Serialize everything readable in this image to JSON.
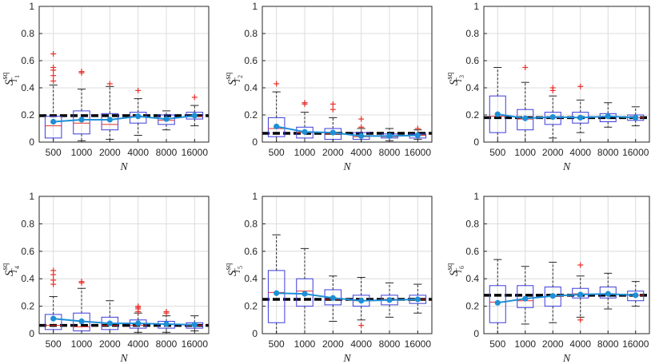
{
  "chart_data": [
    {
      "type": "box",
      "xlabel": "N",
      "ylabel": {
        "base": "S",
        "sup": "sq",
        "sub": "T",
        "subsub": "1"
      },
      "ylim": [
        0,
        1
      ],
      "yticks": [
        "0",
        "0.2",
        "0.4",
        "0.6",
        "0.8",
        "1"
      ],
      "categories": [
        "500",
        "1000",
        "2000",
        "4000",
        "8000",
        "16000"
      ],
      "reference": 0.195,
      "boxes": [
        {
          "whislo": 0.0,
          "q1": 0.03,
          "med": 0.12,
          "q3": 0.19,
          "whishi": 0.42,
          "fliers": [
            0.45,
            0.49,
            0.53,
            0.55,
            0.65
          ]
        },
        {
          "whislo": 0.01,
          "q1": 0.06,
          "med": 0.14,
          "q3": 0.23,
          "whishi": 0.39,
          "fliers": [
            0.51,
            0.52
          ]
        },
        {
          "whislo": 0.02,
          "q1": 0.09,
          "med": 0.13,
          "q3": 0.21,
          "whishi": 0.41,
          "fliers": [
            0.43
          ]
        },
        {
          "whislo": 0.05,
          "q1": 0.14,
          "med": 0.19,
          "q3": 0.22,
          "whishi": 0.32,
          "fliers": [
            0.38
          ]
        },
        {
          "whislo": 0.09,
          "q1": 0.13,
          "med": 0.16,
          "q3": 0.2,
          "whishi": 0.23,
          "fliers": []
        },
        {
          "whislo": 0.12,
          "q1": 0.17,
          "med": 0.19,
          "q3": 0.22,
          "whishi": 0.27,
          "fliers": [
            0.33
          ]
        }
      ],
      "means": [
        0.15,
        0.165,
        0.165,
        0.19,
        0.17,
        0.195
      ]
    },
    {
      "type": "box",
      "xlabel": "N",
      "ylabel": {
        "base": "S",
        "sup": "sq",
        "sub": "T",
        "subsub": "2"
      },
      "ylim": [
        0,
        1
      ],
      "yticks": [
        "0",
        "0.2",
        "0.4",
        "0.6",
        "0.8",
        "1"
      ],
      "categories": [
        "500",
        "1000",
        "2000",
        "4000",
        "8000",
        "16000"
      ],
      "reference": 0.065,
      "boxes": [
        {
          "whislo": 0.0,
          "q1": 0.04,
          "med": 0.1,
          "q3": 0.18,
          "whishi": 0.37,
          "fliers": [
            0.43
          ]
        },
        {
          "whislo": 0.0,
          "q1": 0.03,
          "med": 0.07,
          "q3": 0.11,
          "whishi": 0.22,
          "fliers": [
            0.28,
            0.29
          ]
        },
        {
          "whislo": 0.0,
          "q1": 0.02,
          "med": 0.06,
          "q3": 0.1,
          "whishi": 0.18,
          "fliers": [
            0.24,
            0.28
          ]
        },
        {
          "whislo": 0.0,
          "q1": 0.02,
          "med": 0.04,
          "q3": 0.07,
          "whishi": 0.1,
          "fliers": [
            0.11,
            0.17
          ]
        },
        {
          "whislo": 0.01,
          "q1": 0.03,
          "med": 0.04,
          "q3": 0.06,
          "whishi": 0.1,
          "fliers": []
        },
        {
          "whislo": 0.02,
          "q1": 0.03,
          "med": 0.05,
          "q3": 0.06,
          "whishi": 0.09,
          "fliers": [
            0.1
          ]
        }
      ],
      "means": [
        0.115,
        0.075,
        0.07,
        0.045,
        0.045,
        0.05
      ]
    },
    {
      "type": "box",
      "xlabel": "N",
      "ylabel": {
        "base": "S",
        "sup": "sq",
        "sub": "T",
        "subsub": "3"
      },
      "ylim": [
        0,
        1
      ],
      "yticks": [
        "0",
        "0.2",
        "0.4",
        "0.6",
        "0.8",
        "1"
      ],
      "categories": [
        "500",
        "1000",
        "2000",
        "4000",
        "8000",
        "16000"
      ],
      "reference": 0.18,
      "boxes": [
        {
          "whislo": 0.0,
          "q1": 0.07,
          "med": 0.19,
          "q3": 0.34,
          "whishi": 0.55,
          "fliers": []
        },
        {
          "whislo": 0.0,
          "q1": 0.09,
          "med": 0.17,
          "q3": 0.24,
          "whishi": 0.44,
          "fliers": [
            0.55
          ]
        },
        {
          "whislo": 0.03,
          "q1": 0.13,
          "med": 0.18,
          "q3": 0.22,
          "whishi": 0.34,
          "fliers": [
            0.38,
            0.4
          ]
        },
        {
          "whislo": 0.07,
          "q1": 0.14,
          "med": 0.18,
          "q3": 0.22,
          "whishi": 0.31,
          "fliers": [
            0.41
          ]
        },
        {
          "whislo": 0.11,
          "q1": 0.15,
          "med": 0.19,
          "q3": 0.21,
          "whishi": 0.29,
          "fliers": []
        },
        {
          "whislo": 0.12,
          "q1": 0.16,
          "med": 0.18,
          "q3": 0.2,
          "whishi": 0.26,
          "fliers": []
        }
      ],
      "means": [
        0.205,
        0.175,
        0.185,
        0.18,
        0.19,
        0.18
      ]
    },
    {
      "type": "box",
      "xlabel": "N",
      "ylabel": {
        "base": "S",
        "sup": "sq",
        "sub": "T",
        "subsub": "4"
      },
      "ylim": [
        0,
        1
      ],
      "yticks": [
        "0",
        "0.2",
        "0.4",
        "0.6",
        "0.8",
        "1"
      ],
      "categories": [
        "500",
        "1000",
        "2000",
        "4000",
        "8000",
        "16000"
      ],
      "reference": 0.06,
      "boxes": [
        {
          "whislo": 0.0,
          "q1": 0.03,
          "med": 0.06,
          "q3": 0.14,
          "whishi": 0.27,
          "fliers": [
            0.36,
            0.39,
            0.43,
            0.46
          ]
        },
        {
          "whislo": 0.0,
          "q1": 0.02,
          "med": 0.05,
          "q3": 0.15,
          "whishi": 0.33,
          "fliers": [
            0.37,
            0.38
          ]
        },
        {
          "whislo": 0.0,
          "q1": 0.03,
          "med": 0.06,
          "q3": 0.12,
          "whishi": 0.24,
          "fliers": []
        },
        {
          "whislo": 0.01,
          "q1": 0.04,
          "med": 0.06,
          "q3": 0.1,
          "whishi": 0.15,
          "fliers": [
            0.16,
            0.18,
            0.19,
            0.2
          ]
        },
        {
          "whislo": 0.01,
          "q1": 0.04,
          "med": 0.07,
          "q3": 0.09,
          "whishi": 0.13,
          "fliers": [
            0.15,
            0.16
          ]
        },
        {
          "whislo": 0.02,
          "q1": 0.04,
          "med": 0.06,
          "q3": 0.08,
          "whishi": 0.13,
          "fliers": []
        }
      ],
      "means": [
        0.11,
        0.09,
        0.075,
        0.075,
        0.07,
        0.065
      ]
    },
    {
      "type": "box",
      "xlabel": "N",
      "ylabel": {
        "base": "S",
        "sup": "sq",
        "sub": "T",
        "subsub": "5"
      },
      "ylim": [
        0,
        1
      ],
      "yticks": [
        "0",
        "0.2",
        "0.4",
        "0.6",
        "0.8",
        "1"
      ],
      "categories": [
        "500",
        "1000",
        "2000",
        "4000",
        "8000",
        "16000"
      ],
      "reference": 0.25,
      "boxes": [
        {
          "whislo": 0.0,
          "q1": 0.08,
          "med": 0.3,
          "q3": 0.46,
          "whishi": 0.72,
          "fliers": []
        },
        {
          "whislo": 0.0,
          "q1": 0.2,
          "med": 0.31,
          "q3": 0.4,
          "whishi": 0.62,
          "fliers": []
        },
        {
          "whislo": 0.09,
          "q1": 0.21,
          "med": 0.25,
          "q3": 0.32,
          "whishi": 0.42,
          "fliers": []
        },
        {
          "whislo": 0.1,
          "q1": 0.2,
          "med": 0.24,
          "q3": 0.28,
          "whishi": 0.41,
          "fliers": [
            0.06
          ]
        },
        {
          "whislo": 0.12,
          "q1": 0.21,
          "med": 0.25,
          "q3": 0.28,
          "whishi": 0.37,
          "fliers": []
        },
        {
          "whislo": 0.15,
          "q1": 0.22,
          "med": 0.25,
          "q3": 0.28,
          "whishi": 0.36,
          "fliers": []
        }
      ],
      "means": [
        0.295,
        0.29,
        0.26,
        0.24,
        0.245,
        0.25
      ]
    },
    {
      "type": "box",
      "xlabel": "N",
      "ylabel": {
        "base": "S",
        "sup": "sq",
        "sub": "T",
        "subsub": "6"
      },
      "ylim": [
        0,
        1
      ],
      "yticks": [
        "0",
        "0.2",
        "0.4",
        "0.6",
        "0.8",
        "1"
      ],
      "categories": [
        "500",
        "1000",
        "2000",
        "4000",
        "8000",
        "16000"
      ],
      "reference": 0.28,
      "boxes": [
        {
          "whislo": 0.0,
          "q1": 0.08,
          "med": 0.23,
          "q3": 0.35,
          "whishi": 0.54,
          "fliers": []
        },
        {
          "whislo": 0.07,
          "q1": 0.19,
          "med": 0.24,
          "q3": 0.35,
          "whishi": 0.49,
          "fliers": []
        },
        {
          "whislo": 0.08,
          "q1": 0.2,
          "med": 0.27,
          "q3": 0.34,
          "whishi": 0.52,
          "fliers": []
        },
        {
          "whislo": 0.12,
          "q1": 0.26,
          "med": 0.29,
          "q3": 0.33,
          "whishi": 0.42,
          "fliers": [
            0.1,
            0.5
          ]
        },
        {
          "whislo": 0.18,
          "q1": 0.26,
          "med": 0.29,
          "q3": 0.34,
          "whishi": 0.44,
          "fliers": []
        },
        {
          "whislo": 0.2,
          "q1": 0.24,
          "med": 0.28,
          "q3": 0.31,
          "whishi": 0.38,
          "fliers": []
        }
      ],
      "means": [
        0.225,
        0.255,
        0.275,
        0.285,
        0.29,
        0.28
      ]
    }
  ],
  "colors": {
    "box": "#3b3bdc",
    "median": "#e0302c",
    "whisker": "#262626",
    "outlier": "#e8302a",
    "mean_line": "#1e8fd6",
    "reference": "#000000",
    "grid": "#dcdcdc",
    "axis": "#262626"
  }
}
